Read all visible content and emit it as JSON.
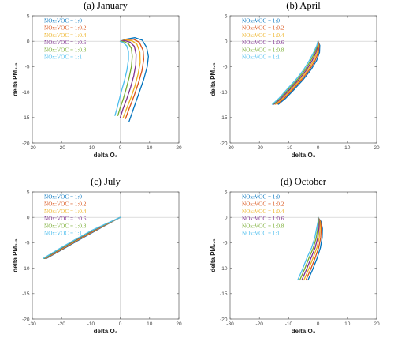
{
  "colors": [
    "#0072BD",
    "#D95319",
    "#EDB120",
    "#7E2F8E",
    "#77AC30",
    "#4DBEEE"
  ],
  "chart_data": [
    {
      "type": "line",
      "title": "(a) January",
      "xlabel": "delta O₃",
      "ylabel": "delta PM₂.₅",
      "xlim": [
        -30,
        20
      ],
      "ylim": [
        -20,
        5
      ],
      "xticks": [
        "-30",
        "-20",
        "-10",
        "0",
        "10",
        "20"
      ],
      "yticks": [
        "5",
        "0",
        "-5",
        "-10",
        "-15",
        "-20"
      ],
      "grid": false,
      "legend_position": "top-left",
      "series": [
        {
          "name": "NOx:VOC = 1:0",
          "x": [
            0,
            2,
            5,
            7.5,
            9,
            9.6,
            9.2,
            8,
            6.5,
            4.8,
            3
          ],
          "y": [
            0,
            0.4,
            0.7,
            0.2,
            -1.2,
            -3,
            -5,
            -7.5,
            -10,
            -12.8,
            -15.8
          ]
        },
        {
          "name": "NOx:VOC = 1:0.2",
          "x": [
            0,
            2,
            4.5,
            6.5,
            7.8,
            8,
            7.4,
            6.2,
            4.8,
            3.2,
            1.8
          ],
          "y": [
            0,
            0.3,
            0.4,
            -0.2,
            -1.8,
            -3.6,
            -5.8,
            -8.2,
            -10.6,
            -13,
            -15.2
          ]
        },
        {
          "name": "NOx:VOC = 1:0.4",
          "x": [
            0,
            1.8,
            4,
            5.7,
            6.7,
            6.8,
            6.1,
            5,
            3.7,
            2.2,
            1
          ],
          "y": [
            0,
            0.2,
            0.1,
            -0.6,
            -2.2,
            -4.2,
            -6.4,
            -8.8,
            -11,
            -13.2,
            -15
          ]
        },
        {
          "name": "NOx:VOC = 1:0.6",
          "x": [
            0,
            1.6,
            3.4,
            4.8,
            5.4,
            5.3,
            4.6,
            3.5,
            2.3,
            1,
            0
          ],
          "y": [
            0,
            0.1,
            -0.2,
            -1,
            -2.6,
            -4.6,
            -6.8,
            -9.1,
            -11.2,
            -13.2,
            -15
          ]
        },
        {
          "name": "NOx:VOC = 1:0.8",
          "x": [
            0,
            1.4,
            2.8,
            3.8,
            4.1,
            3.8,
            3,
            2,
            1,
            -0.1,
            -0.8
          ],
          "y": [
            0,
            -0.1,
            -0.5,
            -1.4,
            -3,
            -5,
            -7.2,
            -9.4,
            -11.4,
            -13.2,
            -14.6
          ]
        },
        {
          "name": "NOx:VOC = 1:1",
          "x": [
            0,
            1.1,
            2.2,
            2.8,
            2.8,
            2.3,
            1.4,
            0.4,
            -0.5,
            -1.2,
            -1.8
          ],
          "y": [
            0,
            -0.3,
            -0.9,
            -2,
            -3.6,
            -5.6,
            -7.8,
            -9.8,
            -11.8,
            -13.4,
            -14.6
          ]
        }
      ]
    },
    {
      "type": "line",
      "title": "(b) April",
      "xlabel": "delta O₃",
      "ylabel": "delta PM₂.₅",
      "xlim": [
        -30,
        20
      ],
      "ylim": [
        -20,
        5
      ],
      "xticks": [
        "-30",
        "-20",
        "-10",
        "0",
        "10",
        "20"
      ],
      "yticks": [
        "5",
        "0",
        "-5",
        "-10",
        "-15",
        "-20"
      ],
      "grid": false,
      "legend_position": "top-left",
      "series": [
        {
          "name": "NOx:VOC = 1:0",
          "x": [
            0,
            0.6,
            0.5,
            -0.5,
            -2.4,
            -5,
            -8,
            -11,
            -13.5
          ],
          "y": [
            0,
            -0.8,
            -2.2,
            -3.8,
            -5.6,
            -7.5,
            -9.4,
            -11.2,
            -12.4
          ]
        },
        {
          "name": "NOx:VOC = 1:0.2",
          "x": [
            0,
            0.4,
            0.1,
            -1,
            -2.9,
            -5.5,
            -8.5,
            -11.5,
            -14
          ],
          "y": [
            0,
            -0.8,
            -2.2,
            -3.8,
            -5.6,
            -7.5,
            -9.4,
            -11.2,
            -12.4
          ]
        },
        {
          "name": "NOx:VOC = 1:0.4",
          "x": [
            0,
            0.2,
            -0.3,
            -1.5,
            -3.4,
            -6,
            -9,
            -12,
            -14.5
          ],
          "y": [
            0,
            -0.8,
            -2.2,
            -3.8,
            -5.6,
            -7.5,
            -9.4,
            -11.2,
            -12.4
          ]
        },
        {
          "name": "NOx:VOC = 1:0.6",
          "x": [
            0,
            0,
            -0.7,
            -2,
            -3.9,
            -6.5,
            -9.5,
            -12.5,
            -15
          ],
          "y": [
            0,
            -0.8,
            -2.2,
            -3.8,
            -5.6,
            -7.5,
            -9.4,
            -11.2,
            -12.4
          ]
        },
        {
          "name": "NOx:VOC = 1:0.8",
          "x": [
            0,
            -0.2,
            -1.1,
            -2.5,
            -4.4,
            -7,
            -10,
            -13,
            -15.3
          ],
          "y": [
            0,
            -0.8,
            -2.2,
            -3.8,
            -5.6,
            -7.5,
            -9.4,
            -11.2,
            -12.4
          ]
        },
        {
          "name": "NOx:VOC = 1:1",
          "x": [
            0,
            -0.4,
            -1.5,
            -3,
            -4.9,
            -7.5,
            -10.5,
            -13.3,
            -15.6
          ],
          "y": [
            0,
            -0.8,
            -2.2,
            -3.8,
            -5.6,
            -7.5,
            -9.4,
            -11.2,
            -12.4
          ]
        }
      ]
    },
    {
      "type": "line",
      "title": "(c) July",
      "xlabel": "delta O₃",
      "ylabel": "delta PM₂.₅",
      "xlim": [
        -30,
        20
      ],
      "ylim": [
        -20,
        5
      ],
      "xticks": [
        "-30",
        "-20",
        "-10",
        "0",
        "10",
        "20"
      ],
      "yticks": [
        "5",
        "0",
        "-5",
        "-10",
        "-15",
        "-20"
      ],
      "grid": false,
      "legend_position": "top-left",
      "series": [
        {
          "name": "NOx:VOC = 1:0",
          "x": [
            0,
            -5,
            -10,
            -15,
            -20,
            -25.2
          ],
          "y": [
            0,
            -1.55,
            -3.15,
            -4.75,
            -6.4,
            -8.1
          ]
        },
        {
          "name": "NOx:VOC = 1:0.2",
          "x": [
            0,
            -5,
            -10,
            -15,
            -20,
            -25.4
          ],
          "y": [
            0,
            -1.5,
            -3.05,
            -4.65,
            -6.3,
            -8.1
          ]
        },
        {
          "name": "NOx:VOC = 1:0.4",
          "x": [
            0,
            -5,
            -10,
            -15,
            -20,
            -25.6
          ],
          "y": [
            0,
            -1.45,
            -2.95,
            -4.55,
            -6.2,
            -8.1
          ]
        },
        {
          "name": "NOx:VOC = 1:0.6",
          "x": [
            0,
            -5,
            -10,
            -15,
            -20,
            -25.8
          ],
          "y": [
            0,
            -1.4,
            -2.85,
            -4.45,
            -6.1,
            -8.1
          ]
        },
        {
          "name": "NOx:VOC = 1:0.8",
          "x": [
            0,
            -5,
            -10,
            -15,
            -20,
            -26
          ],
          "y": [
            0,
            -1.35,
            -2.75,
            -4.35,
            -6,
            -8.1
          ]
        },
        {
          "name": "NOx:VOC = 1:1",
          "x": [
            0,
            -5,
            -10,
            -15,
            -20,
            -26.3
          ],
          "y": [
            0,
            -1.3,
            -2.65,
            -4.25,
            -5.9,
            -8.1
          ]
        }
      ]
    },
    {
      "type": "line",
      "title": "(d) October",
      "xlabel": "delta O₃",
      "ylabel": "delta PM₂.₅",
      "xlim": [
        -30,
        20
      ],
      "ylim": [
        -20,
        5
      ],
      "xticks": [
        "-30",
        "-20",
        "-10",
        "0",
        "10",
        "20"
      ],
      "yticks": [
        "5",
        "0",
        "-5",
        "-10",
        "-15",
        "-20"
      ],
      "grid": false,
      "legend_position": "top-left",
      "series": [
        {
          "name": "NOx:VOC = 1:0",
          "x": [
            0,
            1,
            1.5,
            1.4,
            0.8,
            -0.3,
            -1.8,
            -3.4
          ],
          "y": [
            0,
            -0.8,
            -2.2,
            -4,
            -6,
            -8,
            -10.2,
            -12.3
          ]
        },
        {
          "name": "NOx:VOC = 1:0.2",
          "x": [
            0,
            0.8,
            1.1,
            0.9,
            0.2,
            -1,
            -2.5,
            -4.1
          ],
          "y": [
            0,
            -0.8,
            -2.2,
            -4,
            -6,
            -8,
            -10.2,
            -12.3
          ]
        },
        {
          "name": "NOx:VOC = 1:0.4",
          "x": [
            0,
            0.6,
            0.7,
            0.4,
            -0.4,
            -1.7,
            -3.2,
            -4.8
          ],
          "y": [
            0,
            -0.8,
            -2.2,
            -4,
            -6,
            -8,
            -10.2,
            -12.3
          ]
        },
        {
          "name": "NOx:VOC = 1:0.6",
          "x": [
            0,
            0.4,
            0.3,
            -0.1,
            -1,
            -2.4,
            -3.9,
            -5.5
          ],
          "y": [
            0,
            -0.8,
            -2.2,
            -4,
            -6,
            -8,
            -10.2,
            -12.3
          ]
        },
        {
          "name": "NOx:VOC = 1:0.8",
          "x": [
            0,
            0.2,
            -0.1,
            -0.6,
            -1.6,
            -3.1,
            -4.6,
            -6.2
          ],
          "y": [
            0,
            -0.8,
            -2.2,
            -4,
            -6,
            -8,
            -10.2,
            -12.3
          ]
        },
        {
          "name": "NOx:VOC = 1:1",
          "x": [
            0,
            0,
            -0.5,
            -1.1,
            -2.2,
            -3.8,
            -5.3,
            -6.9
          ],
          "y": [
            0,
            -0.8,
            -2.2,
            -4,
            -6,
            -8,
            -10.2,
            -12.3
          ]
        }
      ]
    }
  ]
}
